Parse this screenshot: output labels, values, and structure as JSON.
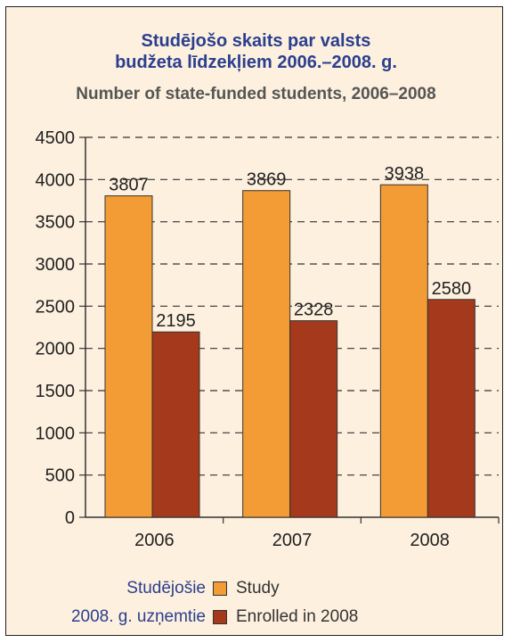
{
  "chart_data": {
    "type": "bar",
    "title_lv_line1": "Studējošo skaits par valsts",
    "title_lv_line2": "budžeta līdzekļiem 2006.–2008. g.",
    "title_en": "Number of state-funded students, 2006–2008",
    "categories": [
      "2006",
      "2007",
      "2008"
    ],
    "series": [
      {
        "name": "Study",
        "name_lv": "Studējošie",
        "color": "#f39b34",
        "values": [
          3807,
          3869,
          3938
        ]
      },
      {
        "name": "Enrolled in 2008",
        "name_lv": "2008. g. uzņemtie",
        "color": "#a5391b",
        "values": [
          2195,
          2328,
          2580
        ]
      }
    ],
    "ylim": [
      0,
      4500
    ],
    "yticks": [
      "0",
      "500",
      "1000",
      "1500",
      "2000",
      "2500",
      "3000",
      "3500",
      "4000",
      "4500"
    ],
    "grid": "dashed",
    "legend_position": "bottom"
  }
}
